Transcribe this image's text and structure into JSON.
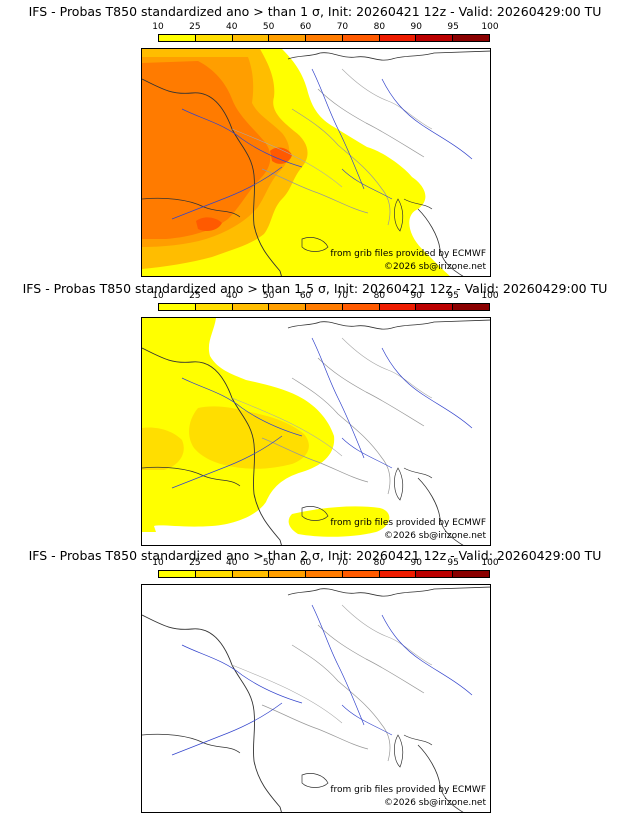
{
  "legend": {
    "ticks": [
      "10",
      "25",
      "40",
      "50",
      "60",
      "70",
      "80",
      "90",
      "95",
      "100"
    ],
    "colors": [
      "#ffff00",
      "#ffde00",
      "#ffbd00",
      "#ff9e00",
      "#ff7b00",
      "#ff5a00",
      "#ee1c00",
      "#bb0000",
      "#8a0000"
    ]
  },
  "panels": [
    {
      "title": "IFS - Probas T850  standardized ano > than 1 σ, Init: 20260421 12z - Valid: 20260429:00 TU",
      "credit_source": "from grib files provided by ECMWF",
      "credit_copyright": "©2026 sb@irizone.net"
    },
    {
      "title": "IFS - Probas T850  standardized ano > than 1.5 σ, Init: 20260421 12z - Valid: 20260429:00 TU",
      "credit_source": "from grib files provided by ECMWF",
      "credit_copyright": "©2026 sb@irizone.net"
    },
    {
      "title": "IFS - Probas T850  standardized ano > than 2 σ, Init: 20260421 12z - Valid: 20260429:00 TU",
      "credit_source": "from grib files provided by ECMWF",
      "credit_copyright": "©2026 sb@irizone.net"
    }
  ]
}
